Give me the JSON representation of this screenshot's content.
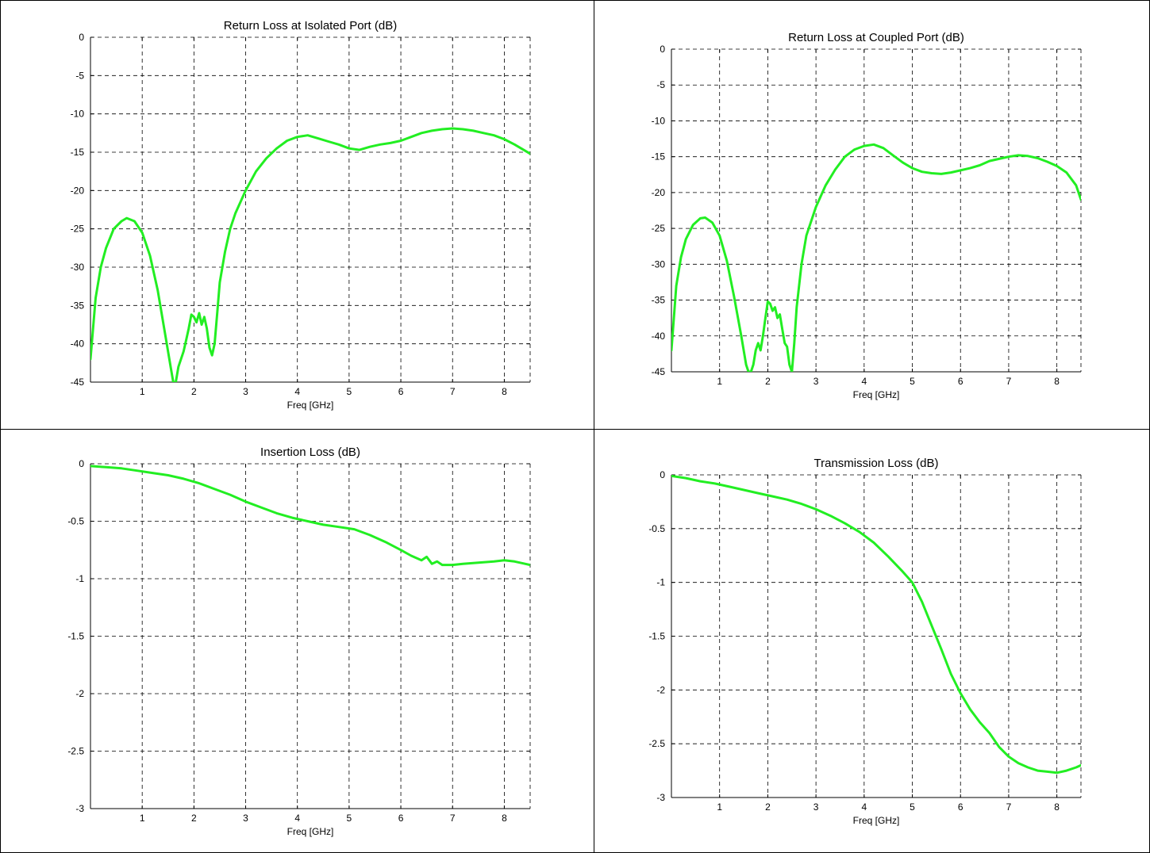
{
  "chart_data": [
    {
      "type": "line",
      "title": "Return Loss at Isolated Port (dB)",
      "xlabel": "Freq [GHz]",
      "ylabel": "",
      "xlim": [
        0,
        8.5
      ],
      "ylim": [
        -45,
        0
      ],
      "xticks": [
        1,
        2,
        3,
        4,
        5,
        6,
        7,
        8
      ],
      "yticks": [
        0,
        -5,
        -10,
        -15,
        -20,
        -25,
        -30,
        -35,
        -40,
        -45
      ],
      "grid": true,
      "color": "#22ee22",
      "series": [
        {
          "x": [
            0,
            0.1,
            0.2,
            0.3,
            0.45,
            0.6,
            0.7,
            0.85,
            1.0,
            1.15,
            1.3,
            1.45,
            1.55,
            1.6,
            1.65,
            1.7,
            1.8,
            1.85,
            1.9,
            1.95,
            2.0,
            2.05,
            2.1,
            2.15,
            2.2,
            2.25,
            2.3,
            2.35,
            2.4,
            2.45,
            2.5,
            2.6,
            2.7,
            2.8,
            3.0,
            3.2,
            3.4,
            3.6,
            3.8,
            4.0,
            4.2,
            4.4,
            4.6,
            4.8,
            5.0,
            5.2,
            5.4,
            5.6,
            5.8,
            6.0,
            6.2,
            6.4,
            6.6,
            6.8,
            7.0,
            7.2,
            7.4,
            7.6,
            7.8,
            8.0,
            8.2,
            8.4,
            8.5
          ],
          "y": [
            -42,
            -34,
            -30,
            -27.5,
            -25,
            -24,
            -23.6,
            -24,
            -25.5,
            -28.5,
            -33,
            -39,
            -43,
            -45,
            -45,
            -43,
            -41,
            -39.5,
            -38,
            -36.2,
            -36.5,
            -37.2,
            -36,
            -37.5,
            -36.5,
            -38,
            -40.5,
            -41.5,
            -40,
            -36,
            -32,
            -28,
            -25,
            -23,
            -20,
            -17.5,
            -15.8,
            -14.5,
            -13.5,
            -13,
            -12.8,
            -13.2,
            -13.6,
            -14,
            -14.5,
            -14.7,
            -14.3,
            -14,
            -13.8,
            -13.5,
            -13,
            -12.5,
            -12.2,
            -12,
            -11.9,
            -12,
            -12.2,
            -12.5,
            -12.8,
            -13.3,
            -14,
            -14.8,
            -15.2
          ]
        }
      ]
    },
    {
      "type": "line",
      "title": "Return Loss at Coupled Port (dB)",
      "xlabel": "Freq [GHz]",
      "ylabel": "",
      "xlim": [
        0,
        8.5
      ],
      "ylim": [
        -45,
        0
      ],
      "xticks": [
        1,
        2,
        3,
        4,
        5,
        6,
        7,
        8
      ],
      "yticks": [
        0,
        -5,
        -10,
        -15,
        -20,
        -25,
        -30,
        -35,
        -40,
        -45
      ],
      "grid": true,
      "color": "#22ee22",
      "series": [
        {
          "x": [
            0,
            0.1,
            0.2,
            0.3,
            0.45,
            0.6,
            0.7,
            0.85,
            1.0,
            1.15,
            1.3,
            1.45,
            1.55,
            1.6,
            1.65,
            1.7,
            1.75,
            1.8,
            1.85,
            1.9,
            1.95,
            2.0,
            2.05,
            2.1,
            2.15,
            2.2,
            2.25,
            2.3,
            2.35,
            2.4,
            2.45,
            2.5,
            2.55,
            2.6,
            2.7,
            2.8,
            3.0,
            3.2,
            3.4,
            3.6,
            3.8,
            4.0,
            4.2,
            4.4,
            4.6,
            4.8,
            5.0,
            5.2,
            5.4,
            5.6,
            5.8,
            6.0,
            6.2,
            6.4,
            6.6,
            6.8,
            7.0,
            7.2,
            7.4,
            7.6,
            7.8,
            8.0,
            8.2,
            8.4,
            8.5
          ],
          "y": [
            -42,
            -33,
            -29,
            -26.5,
            -24.5,
            -23.6,
            -23.5,
            -24.2,
            -26,
            -29.5,
            -34.5,
            -40,
            -44,
            -45,
            -45,
            -44,
            -42,
            -41,
            -42,
            -40,
            -37.5,
            -35.2,
            -35.5,
            -36.5,
            -36,
            -37.5,
            -37,
            -39,
            -41,
            -41.5,
            -44,
            -45,
            -41,
            -36,
            -30,
            -26,
            -22,
            -19,
            -16.8,
            -15,
            -14,
            -13.5,
            -13.3,
            -13.8,
            -14.8,
            -15.8,
            -16.6,
            -17.1,
            -17.3,
            -17.4,
            -17.2,
            -16.9,
            -16.6,
            -16.2,
            -15.6,
            -15.3,
            -15,
            -14.8,
            -14.9,
            -15.2,
            -15.7,
            -16.3,
            -17.2,
            -19,
            -21
          ]
        }
      ]
    },
    {
      "type": "line",
      "title": "Insertion Loss (dB)",
      "xlabel": "Freq [GHz]",
      "ylabel": "",
      "xlim": [
        0,
        8.5
      ],
      "ylim": [
        -3,
        0
      ],
      "xticks": [
        1,
        2,
        3,
        4,
        5,
        6,
        7,
        8
      ],
      "yticks": [
        0,
        -0.5,
        -1,
        -1.5,
        -2,
        -2.5,
        -3
      ],
      "grid": true,
      "color": "#22ee22",
      "series": [
        {
          "x": [
            0,
            0.3,
            0.6,
            0.9,
            1.2,
            1.5,
            1.8,
            2.1,
            2.4,
            2.7,
            3.0,
            3.3,
            3.6,
            3.9,
            4.2,
            4.5,
            4.8,
            5.1,
            5.4,
            5.7,
            6.0,
            6.2,
            6.4,
            6.5,
            6.6,
            6.7,
            6.8,
            7.0,
            7.2,
            7.5,
            7.8,
            8.0,
            8.2,
            8.4,
            8.5
          ],
          "y": [
            -0.02,
            -0.03,
            -0.04,
            -0.06,
            -0.08,
            -0.1,
            -0.13,
            -0.17,
            -0.22,
            -0.27,
            -0.33,
            -0.38,
            -0.43,
            -0.47,
            -0.5,
            -0.53,
            -0.55,
            -0.57,
            -0.62,
            -0.68,
            -0.75,
            -0.8,
            -0.84,
            -0.81,
            -0.87,
            -0.85,
            -0.88,
            -0.88,
            -0.87,
            -0.86,
            -0.85,
            -0.84,
            -0.85,
            -0.87,
            -0.88
          ]
        }
      ]
    },
    {
      "type": "line",
      "title": "Transmission Loss (dB)",
      "xlabel": "Freq [GHz]",
      "ylabel": "",
      "xlim": [
        0,
        8.5
      ],
      "ylim": [
        -3,
        0
      ],
      "xticks": [
        1,
        2,
        3,
        4,
        5,
        6,
        7,
        8
      ],
      "yticks": [
        0,
        -0.5,
        -1,
        -1.5,
        -2,
        -2.5,
        -3
      ],
      "grid": true,
      "color": "#22ee22",
      "series": [
        {
          "x": [
            0,
            0.3,
            0.6,
            0.9,
            1.2,
            1.5,
            1.8,
            2.1,
            2.4,
            2.7,
            3.0,
            3.3,
            3.6,
            3.9,
            4.2,
            4.5,
            4.8,
            5.0,
            5.2,
            5.4,
            5.6,
            5.8,
            6.0,
            6.2,
            6.4,
            6.6,
            6.8,
            7.0,
            7.2,
            7.4,
            7.6,
            7.8,
            8.0,
            8.2,
            8.4,
            8.5
          ],
          "y": [
            -0.01,
            -0.03,
            -0.06,
            -0.08,
            -0.11,
            -0.14,
            -0.17,
            -0.2,
            -0.23,
            -0.27,
            -0.32,
            -0.38,
            -0.45,
            -0.53,
            -0.63,
            -0.76,
            -0.9,
            -1.0,
            -1.18,
            -1.4,
            -1.62,
            -1.85,
            -2.03,
            -2.18,
            -2.3,
            -2.4,
            -2.53,
            -2.62,
            -2.68,
            -2.72,
            -2.75,
            -2.76,
            -2.77,
            -2.75,
            -2.72,
            -2.7
          ]
        }
      ]
    }
  ]
}
